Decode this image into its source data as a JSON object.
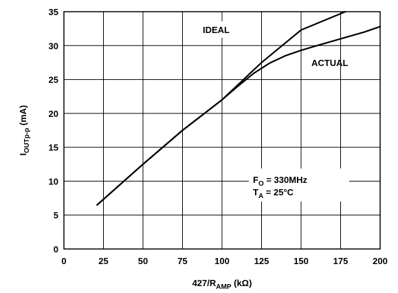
{
  "chart_data": {
    "type": "line",
    "xlabel": {
      "main": "427/R",
      "sub": "AMP",
      "unit": " (kΩ)"
    },
    "ylabel": {
      "main": "I",
      "sub": "OUTp-p",
      "unit": " (mA)"
    },
    "xlim": [
      0,
      200
    ],
    "ylim": [
      0,
      35
    ],
    "xticks": [
      0,
      25,
      50,
      75,
      100,
      125,
      150,
      175,
      200
    ],
    "yticks": [
      0,
      5,
      10,
      15,
      20,
      25,
      30,
      35
    ],
    "grid": true,
    "series": [
      {
        "name": "IDEAL",
        "points": [
          [
            21,
            6.5
          ],
          [
            50,
            12.5
          ],
          [
            75,
            17.5
          ],
          [
            100,
            22.0
          ],
          [
            125,
            27.5
          ],
          [
            150,
            32.3
          ],
          [
            178,
            35
          ]
        ]
      },
      {
        "name": "ACTUAL",
        "points": [
          [
            21,
            6.5
          ],
          [
            50,
            12.5
          ],
          [
            75,
            17.5
          ],
          [
            100,
            22.0
          ],
          [
            110,
            24.0
          ],
          [
            120,
            25.9
          ],
          [
            130,
            27.4
          ],
          [
            140,
            28.5
          ],
          [
            150,
            29.3
          ],
          [
            160,
            30.0
          ],
          [
            175,
            31.0
          ],
          [
            190,
            32.0
          ],
          [
            200,
            32.8
          ]
        ]
      }
    ],
    "annotations": {
      "ideal_label": "IDEAL",
      "actual_label": "ACTUAL",
      "fo": {
        "main": "F",
        "sub": "O",
        "rest": " = 330MHz"
      },
      "ta": {
        "main": "T",
        "sub": "A",
        "rest": " = 25°C"
      }
    }
  }
}
